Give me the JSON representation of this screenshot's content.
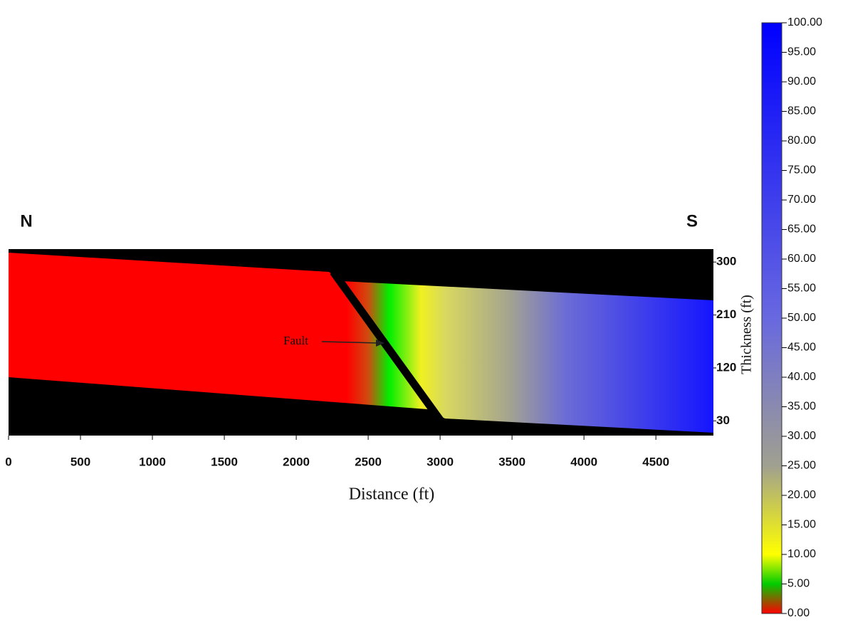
{
  "chart_data": {
    "type": "heatmap",
    "xlabel": "Distance (ft)",
    "north_label": "N",
    "south_label": "S",
    "fault_label": "Fault",
    "xlim": [
      0,
      4900
    ],
    "xticks": [
      0,
      500,
      1000,
      1500,
      2000,
      2500,
      3000,
      3500,
      4000,
      4500
    ],
    "ylim": [
      5,
      322
    ],
    "yticks": [
      30,
      120,
      210,
      300
    ],
    "colorbar": {
      "label": "Thickness (ft)",
      "lim": [
        0,
        100
      ],
      "ticks": [
        {
          "value": 0,
          "label": "0.00"
        },
        {
          "value": 5,
          "label": "5.00"
        },
        {
          "value": 10,
          "label": "10.00"
        },
        {
          "value": 15,
          "label": "15.00"
        },
        {
          "value": 20,
          "label": "20.00"
        },
        {
          "value": 25,
          "label": "25.00"
        },
        {
          "value": 30,
          "label": "30.00"
        },
        {
          "value": 35,
          "label": "35.00"
        },
        {
          "value": 40,
          "label": "40.00"
        },
        {
          "value": 45,
          "label": "45.00"
        },
        {
          "value": 50,
          "label": "50.00"
        },
        {
          "value": 55,
          "label": "55.00"
        },
        {
          "value": 60,
          "label": "60.00"
        },
        {
          "value": 65,
          "label": "65.00"
        },
        {
          "value": 70,
          "label": "70.00"
        },
        {
          "value": 75,
          "label": "75.00"
        },
        {
          "value": 80,
          "label": "80.00"
        },
        {
          "value": 85,
          "label": "85.00"
        },
        {
          "value": 90,
          "label": "90.00"
        },
        {
          "value": 95,
          "label": "95.00"
        },
        {
          "value": 100,
          "label": "100.00"
        }
      ]
    }
  }
}
